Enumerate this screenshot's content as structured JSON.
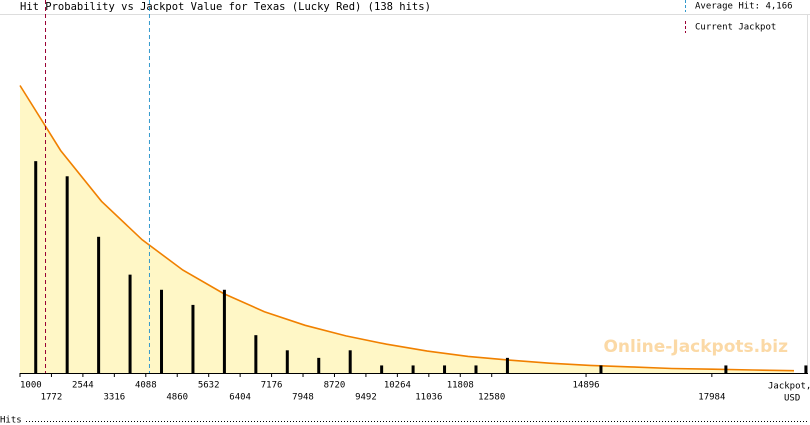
{
  "chart_data": {
    "type": "bar",
    "title": "Hit Probability vs Jackpot Value for Texas (Lucky Red) (138 hits)",
    "x_label": [
      "Jackpot,",
      "USD"
    ],
    "watermark": "Online-Jackpots.biz",
    "rug_label": "Hits",
    "xlim": [
      1000,
      20320
    ],
    "xticks": [
      1000,
      1772,
      2544,
      3316,
      4088,
      4860,
      5632,
      6404,
      7176,
      7948,
      8720,
      9492,
      10264,
      11036,
      11808,
      12580,
      14896,
      17984
    ],
    "ylim": [
      0,
      49.3
    ],
    "bars": {
      "color": "#000000",
      "x": [
        1386,
        2158,
        2930,
        3702,
        4474,
        5246,
        6018,
        6790,
        7562,
        8334,
        9106,
        9878,
        10650,
        11422,
        12194,
        12966,
        15262,
        18329,
        20293
      ],
      "values": [
        28,
        26,
        18,
        13,
        11,
        9,
        11,
        5,
        3,
        2,
        3,
        1,
        1,
        1,
        1,
        2,
        1,
        1,
        1
      ]
    },
    "curve": {
      "color": "#f08000",
      "fill": "#fff7c6",
      "x": [
        1000,
        2000,
        3000,
        4000,
        5000,
        6000,
        7000,
        8000,
        9000,
        10000,
        11000,
        12000,
        13000,
        14000,
        15000,
        16000,
        17000,
        18000,
        19000,
        20000
      ],
      "values": [
        38.0,
        29.4,
        22.7,
        17.6,
        13.6,
        10.5,
        8.1,
        6.3,
        4.9,
        3.8,
        2.9,
        2.2,
        1.7,
        1.3,
        1.0,
        0.8,
        0.6,
        0.5,
        0.4,
        0.3
      ]
    },
    "average_hit": {
      "value": 4166,
      "label": "Average Hit: 4,166",
      "color": "#3399cc"
    },
    "current_jackpot": {
      "value": 1614,
      "label": "Current Jackpot",
      "color": "#990033"
    }
  }
}
